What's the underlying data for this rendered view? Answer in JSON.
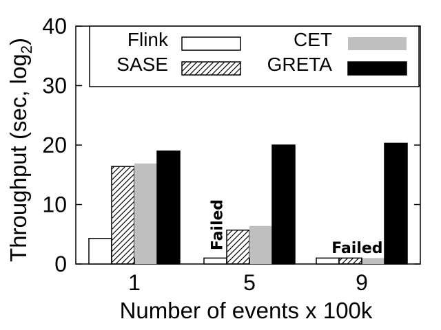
{
  "chart_data": {
    "type": "bar",
    "xlabel": "Number of events x 100k",
    "ylabel_main": "Throughput (sec, log",
    "ylabel_sub": "2",
    "ylabel_close": ")",
    "ylim": [
      0,
      40
    ],
    "yticks": [
      0,
      10,
      20,
      30,
      40
    ],
    "categories": [
      "1",
      "5",
      "9"
    ],
    "grid": false,
    "legend_placement": "top",
    "series": [
      {
        "name": "Flink",
        "style": "white",
        "values": [
          4.3,
          1.0,
          1.0
        ]
      },
      {
        "name": "SASE",
        "style": "hatched",
        "values": [
          16.4,
          5.7,
          1.0
        ]
      },
      {
        "name": "CET",
        "style": "gray",
        "values": [
          16.9,
          6.4,
          1.0
        ]
      },
      {
        "name": "GRETA",
        "style": "black",
        "values": [
          19.0,
          20.0,
          20.3
        ]
      }
    ],
    "annotations": [
      {
        "text": "Failed",
        "category": "5",
        "orientation": "vertical"
      },
      {
        "text": "Failed",
        "category": "9",
        "orientation": "horizontal"
      }
    ],
    "colors": {
      "gray": "#bfbfbf",
      "black": "#000000",
      "white": "#ffffff"
    }
  }
}
